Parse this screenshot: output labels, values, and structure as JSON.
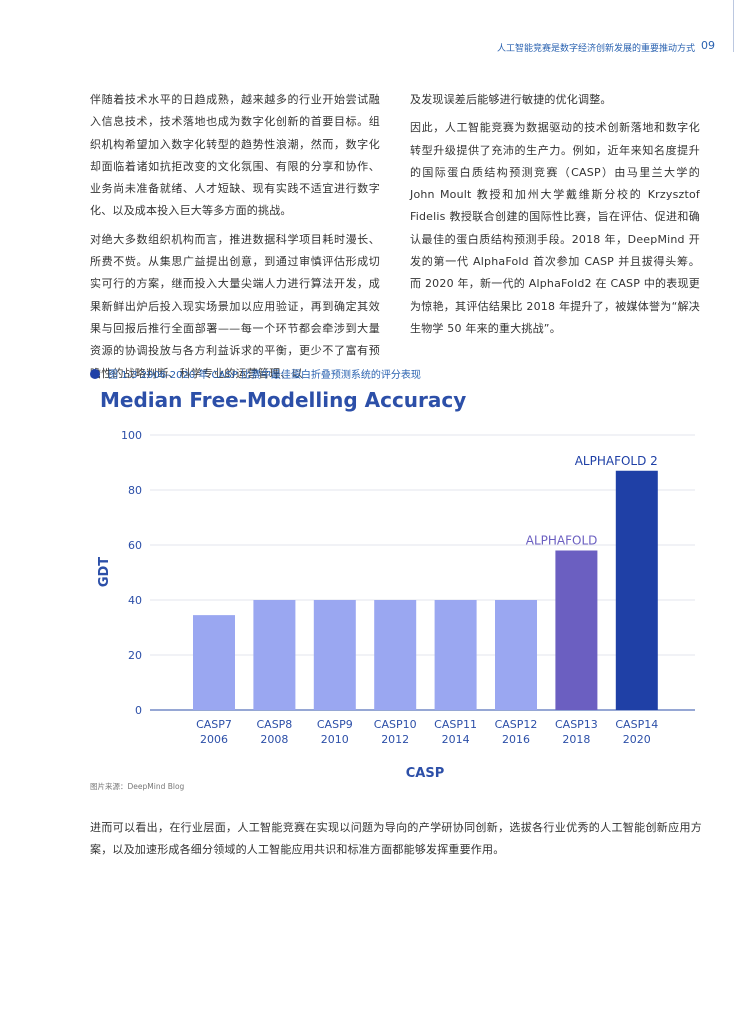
{
  "header": {
    "title": "人工智能竞赛是数字经济创新发展的重要推动方式",
    "page": "09"
  },
  "left_column": [
    "伴随着技术水平的日趋成熟，越来越多的行业开始尝试融入信息技术，技术落地也成为数字化创新的首要目标。组织机构希望加入数字化转型的趋势性浪潮，然而，数字化却面临着诸如抗拒改变的文化氛围、有限的分享和协作、业务尚未准备就绪、人才短缺、现有实践不适宜进行数字化、以及成本投入巨大等多方面的挑战。",
    "对绝大多数组织机构而言，推进数据科学项目耗时漫长、所费不赀。从集思广益提出创意，到通过审慎评估形成切实可行的方案，继而投入大量尖端人力进行算法开发，成果新鲜出炉后投入现实场景加以应用验证，再到确定其效果与回报后推行全面部署——每一个环节都会牵涉到大量资源的协调投放与各方利益诉求的平衡，更少不了富有预瞻性的战略判断、科学专业的运营管理、以"
  ],
  "right_column": [
    "及发现误差后能够进行敏捷的优化调整。",
    "因此，人工智能竞赛为数据驱动的技术创新落地和数字化转型升级提供了充沛的生产力。例如，近年来知名度提升的国际蛋白质结构预测竞赛（CASP）由马里兰大学的 John Moult 教授和加州大学戴维斯分校的 Krzysztof Fidelis 教授联合创建的国际性比赛，旨在评估、促进和确认最佳的蛋白质结构预测手段。2018 年，DeepMind 开发的第一代 AlphaFold 首次参加 CASP 并且拔得头筹。而 2020 年，新一代的 AlphaFold2 在 CASP 中的表现更为惊艳，其评估结果比 2018 年提升了，被媒体誉为“解决生物学 50 年来的重大挑战”。"
  ],
  "figure": {
    "caption": "图 1-3  2006-2020 年 CASP 比赛中最佳蛋白折叠预测系统的评分表现",
    "source": "图片来源：DeepMind Blog"
  },
  "chart_data": {
    "type": "bar",
    "title": "Median Free-Modelling Accuracy",
    "y_label": "GDT",
    "x_label": "CASP",
    "categories": [
      "CASP7",
      "CASP8",
      "CASP9",
      "CASP10",
      "CASP11",
      "CASP12",
      "CASP13",
      "CASP14"
    ],
    "years": [
      "2006",
      "2008",
      "2010",
      "2012",
      "2014",
      "2016",
      "2018",
      "2020"
    ],
    "values": [
      34.5,
      40,
      40,
      40,
      40,
      40,
      58,
      87
    ],
    "colors": [
      "#9aa7f1",
      "#9aa7f1",
      "#9aa7f1",
      "#9aa7f1",
      "#9aa7f1",
      "#9aa7f1",
      "#6b5fc1",
      "#1f40a6"
    ],
    "annotations": [
      {
        "index": 6,
        "text": "ALPHAFOLD"
      },
      {
        "index": 7,
        "text": "ALPHAFOLD 2"
      }
    ],
    "ylim": [
      0,
      100
    ],
    "yticks": [
      0,
      20,
      40,
      60,
      80,
      100
    ],
    "grid": true
  },
  "closing": "进而可以看出，在行业层面，人工智能竞赛在实现以问题为导向的产学研协同创新，选拔各行业优秀的人工智能创新应用方案，以及加速形成各细分领域的人工智能应用共识和标准方面都能够发挥重要作用。"
}
